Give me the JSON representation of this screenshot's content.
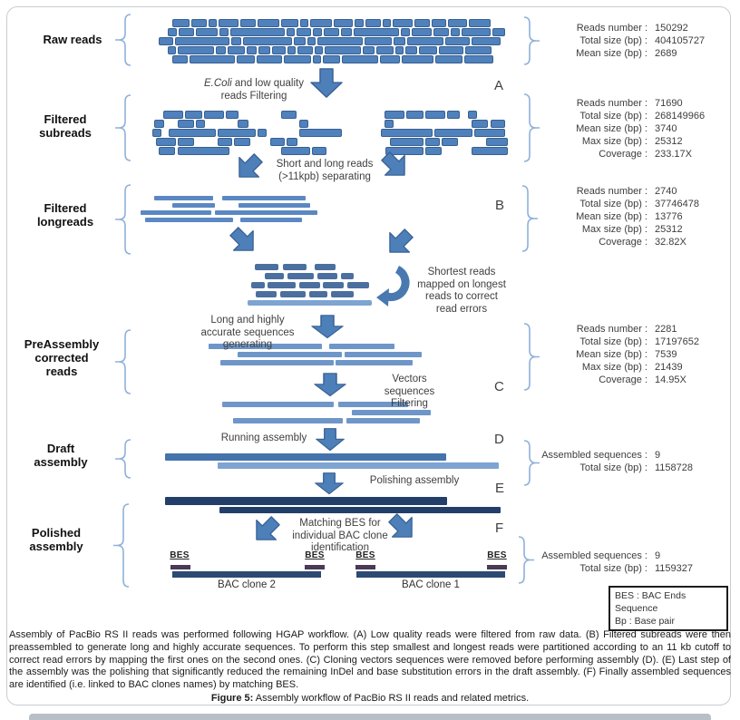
{
  "sections": [
    {
      "label": "Raw reads"
    },
    {
      "label": "Filtered subreads"
    },
    {
      "label": "Filtered longreads"
    },
    {
      "label": "PreAssembly corrected reads"
    },
    {
      "label": "Draft assembly"
    },
    {
      "label": "Polished assembly"
    }
  ],
  "steps": [
    "A",
    "B",
    "C",
    "D",
    "E",
    "F"
  ],
  "stats": {
    "raw": [
      {
        "label": "Reads number :",
        "value": "150292"
      },
      {
        "label": "Total size (bp) :",
        "value": "404105727"
      },
      {
        "label": "Mean size (bp) :",
        "value": "2689"
      }
    ],
    "subreads": [
      {
        "label": "Reads number :",
        "value": "71690"
      },
      {
        "label": "Total size (bp) :",
        "value": "268149966"
      },
      {
        "label": "Mean size (bp) :",
        "value": "3740"
      },
      {
        "label": "Max size (bp) :",
        "value": "25312"
      },
      {
        "label": "Coverage :",
        "value": "233.17X"
      }
    ],
    "longreads": [
      {
        "label": "Reads number :",
        "value": "2740"
      },
      {
        "label": "Total size (bp) :",
        "value": "37746478"
      },
      {
        "label": "Mean size (bp) :",
        "value": "13776"
      },
      {
        "label": "Max size (bp) :",
        "value": "25312"
      },
      {
        "label": "Coverage :",
        "value": "32.82X"
      }
    ],
    "corrected": [
      {
        "label": "Reads number :",
        "value": "2281"
      },
      {
        "label": "Total size (bp) :",
        "value": "17197652"
      },
      {
        "label": "Mean size (bp) :",
        "value": "7539"
      },
      {
        "label": "Max size (bp) :",
        "value": "21439"
      },
      {
        "label": "Coverage :",
        "value": "14.95X"
      }
    ],
    "draft": [
      {
        "label": "Assembled sequences :",
        "value": "9"
      },
      {
        "label": "Total size (bp) :",
        "value": "1158728"
      }
    ],
    "polished": [
      {
        "label": "Assembled sequences :",
        "value": "9"
      },
      {
        "label": "Total size (bp) :",
        "value": "1159327"
      }
    ]
  },
  "annotations": {
    "ecoli_italic": "E.Coli",
    "ecoli_rest": " and low quality reads Filtering",
    "separating": "Short and long reads (>11kpb) separating",
    "mapping": "Shortest reads mapped on longest reads to correct read errors",
    "generating": "Long and highly accurate sequences generating",
    "vector_filtering": "Vectors sequences Filtering",
    "running": "Running assembly",
    "polishing": "Polishing assembly",
    "matching": "Matching BES for individual BAC clone identification"
  },
  "bac": {
    "bes": "BES",
    "clone2": "BAC clone 2",
    "clone1": "BAC clone 1"
  },
  "legend": {
    "line1": "BES : BAC Ends Sequence",
    "line2": "Bp : Base pair"
  },
  "caption": {
    "body": "Assembly of PacBio RS II reads was performed following HGAP workflow. (A) Low quality reads were filtered from raw data. (B) Filtered subreads were then preassembled to generate long and highly accurate sequences. To perform this step smallest and longest reads were partitioned according to an 11 kb cutoff to correct read errors by mapping the first ones on the second ones. (C) Cloning vectors sequences were removed before performing assembly (D). (E) Last step of the assembly was the polishing that significantly reduced the remaining InDel and base substitution errors in the draft assembly. (F) Finally assembled sequences are identified (i.e. linked to BAC clones names) by matching BES.",
    "figure_label": "Figure 5:",
    "figure_text": " Assembly workflow of PacBio RS II reads and related metrics."
  },
  "colors": {
    "bar_blue": "#4f81bd",
    "bar_border": "#38608f",
    "bar_light": "#5b88c2",
    "bar_mid": "#6e96c8",
    "bar_pale": "#7ea4d2",
    "bar_dark": "#4b6f9e",
    "draft_blue": "#4573ab",
    "navy": "#233f69",
    "clone_navy": "#2c4a72",
    "bes_purple": "#4a3a55",
    "arrow_fill": "#4d7fb9",
    "arrow_stroke": "#3a6295",
    "brace_blue": "#8fb0da"
  }
}
